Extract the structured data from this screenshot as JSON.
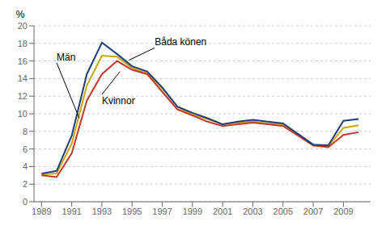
{
  "chart_data": {
    "type": "line",
    "ylabel": "%",
    "x": [
      1989,
      1990,
      1991,
      1992,
      1993,
      1994,
      1995,
      1996,
      1997,
      1998,
      1999,
      2000,
      2001,
      2002,
      2003,
      2004,
      2005,
      2006,
      2007,
      2008,
      2009,
      2010
    ],
    "series": [
      {
        "name": "Båda könen",
        "color": "#c8a800",
        "values": [
          3.1,
          3.2,
          6.6,
          13.2,
          16.6,
          16.5,
          15.2,
          14.6,
          12.9,
          10.8,
          9.9,
          9.4,
          8.8,
          9.0,
          9.1,
          8.9,
          8.8,
          7.6,
          6.4,
          6.3,
          8.4,
          8.7
        ],
        "annotation": {
          "x": 1994.8,
          "y": 16.1,
          "text_x": 1996.5,
          "text_y": 17.5
        }
      },
      {
        "name": "Kvinnor",
        "color": "#c0392b",
        "values": [
          3.0,
          2.8,
          5.5,
          11.5,
          14.5,
          16.0,
          15.0,
          14.5,
          12.5,
          10.5,
          9.8,
          9.1,
          8.6,
          8.8,
          9.0,
          8.8,
          8.6,
          7.5,
          6.4,
          6.2,
          7.6,
          7.9
        ],
        "annotation": {
          "x": 1994.2,
          "y": 14.8,
          "text_x": 1993.0,
          "text_y": 12.2
        }
      },
      {
        "name": "Män",
        "color": "#1f3d7a",
        "values": [
          3.2,
          3.5,
          7.5,
          14.5,
          18.1,
          16.8,
          15.4,
          14.8,
          13.0,
          10.8,
          10.1,
          9.5,
          8.8,
          9.1,
          9.3,
          9.1,
          8.9,
          7.7,
          6.5,
          6.4,
          9.2,
          9.4
        ],
        "annotation": {
          "x": 1991.5,
          "y": 9.5,
          "text_x": 1990.0,
          "text_y": 15.8
        }
      }
    ],
    "xlim": [
      1988.5,
      2010.8
    ],
    "xticks": [
      1989,
      1991,
      1993,
      1995,
      1997,
      1999,
      2001,
      2003,
      2005,
      2007,
      2009
    ],
    "ylim": [
      0,
      20
    ],
    "yticks": [
      0,
      2,
      4,
      6,
      8,
      10,
      12,
      14,
      16,
      18,
      20
    ],
    "grid": true
  }
}
